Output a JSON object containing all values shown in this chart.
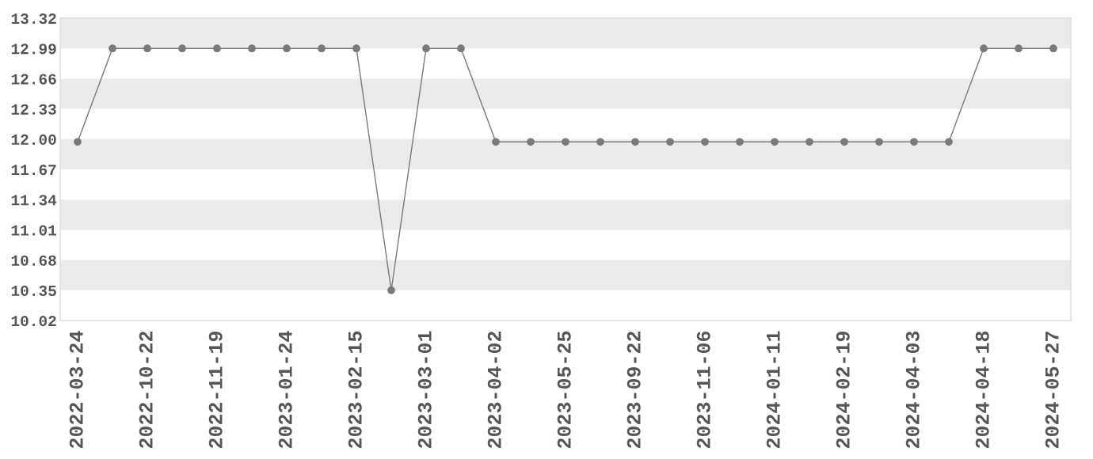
{
  "chart_data": {
    "type": "line",
    "categories": [
      "2022-03-24",
      null,
      "2022-10-22",
      null,
      "2022-11-19",
      null,
      "2023-01-24",
      null,
      "2023-02-15",
      null,
      "2023-03-01",
      null,
      "2023-04-02",
      null,
      "2023-05-25",
      null,
      "2023-09-22",
      null,
      "2023-11-06",
      null,
      "2024-01-11",
      null,
      "2024-02-19",
      null,
      "2024-04-03",
      null,
      "2024-04-18",
      null,
      "2024-05-27"
    ],
    "series": [
      {
        "color": "#7a7a7a",
        "values": [
          11.97,
          12.99,
          12.99,
          12.99,
          12.99,
          12.99,
          12.99,
          12.99,
          12.99,
          10.35,
          12.99,
          12.99,
          11.97,
          11.97,
          11.97,
          11.97,
          11.97,
          11.97,
          11.97,
          11.97,
          11.97,
          11.97,
          11.97,
          11.97,
          11.97,
          11.97,
          12.99,
          12.99,
          12.99
        ]
      }
    ],
    "ylim": [
      10.02,
      13.32
    ],
    "yticks": [
      10.02,
      10.35,
      10.68,
      11.01,
      11.34,
      11.67,
      {
        "value": 12,
        "label": "12.00"
      },
      12.33,
      12.66,
      12.99,
      13.32
    ],
    "bands": [
      {
        "axis": "y",
        "from": 12.99,
        "to": 13.32,
        "color": "#ebebeb"
      },
      {
        "axis": "y",
        "from": 12.33,
        "to": 12.66,
        "color": "#ebebeb"
      },
      {
        "axis": "y",
        "from": 11.67,
        "to": 12.0,
        "color": "#ebebeb"
      },
      {
        "axis": "y",
        "from": 11.01,
        "to": 11.34,
        "color": "#ebebeb"
      },
      {
        "axis": "y",
        "from": 10.35,
        "to": 10.68,
        "color": "#ebebeb"
      }
    ],
    "marker": "circle"
  }
}
